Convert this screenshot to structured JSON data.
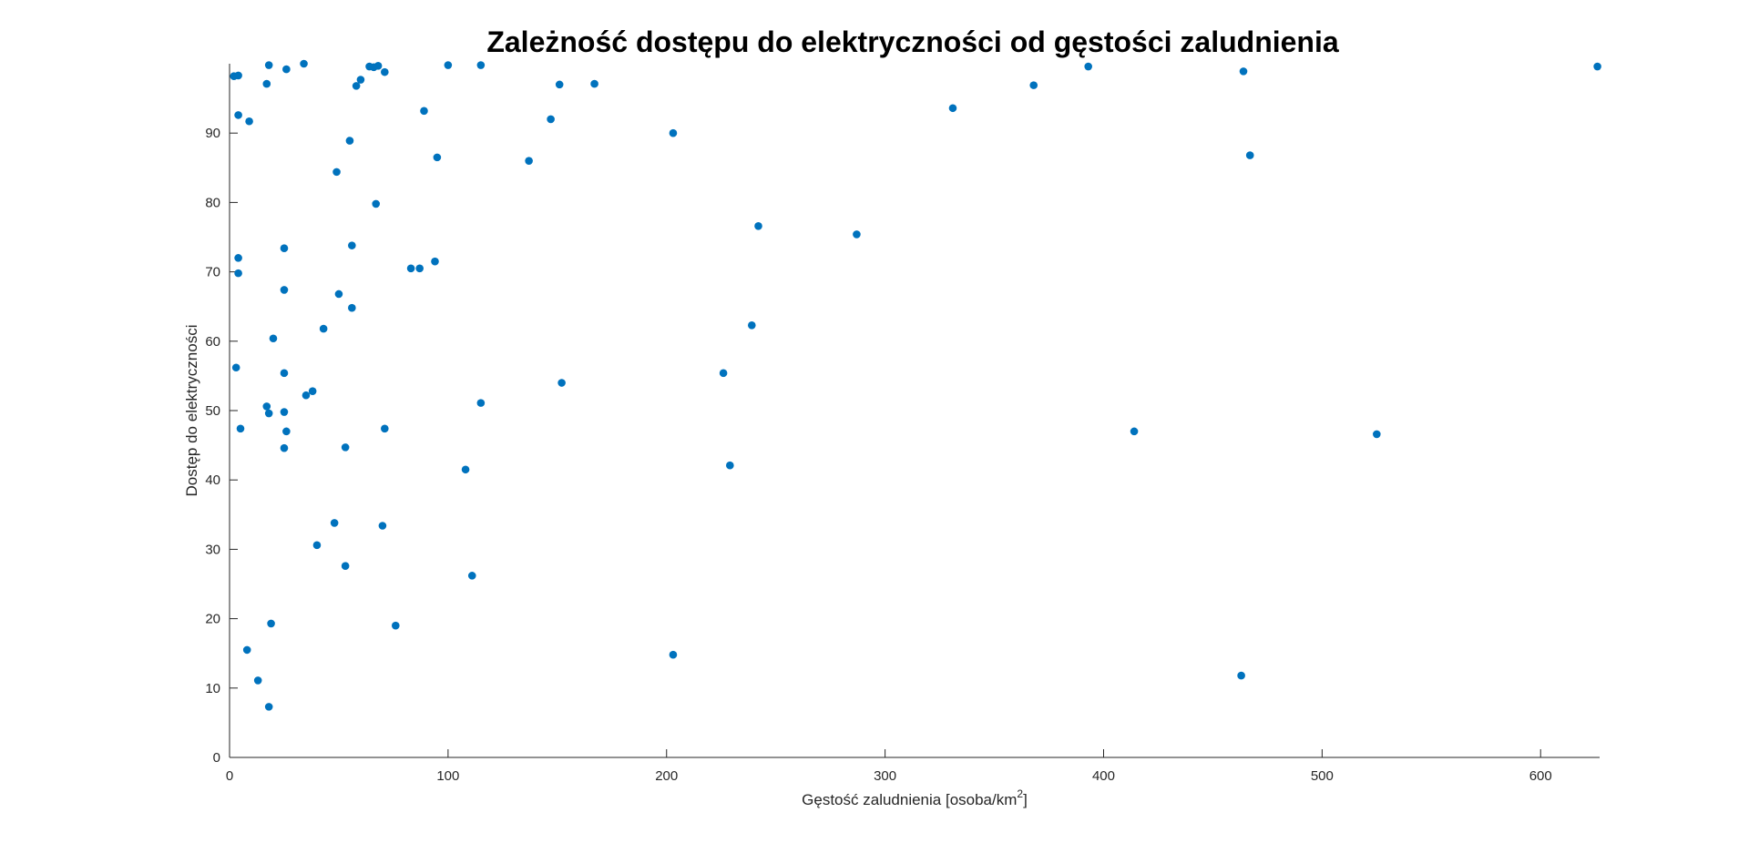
{
  "chart_data": {
    "type": "scatter",
    "title": "Zależność dostępu do elektryczności od gęstości zaludnienia",
    "xlabel": "Gęstość zaludnienia [osoba/km",
    "xlabel_superscript": "2",
    "xlabel_suffix": "]",
    "ylabel": "Dostęp do elektryczności",
    "xlim": [
      0,
      627
    ],
    "ylim": [
      0,
      100
    ],
    "xticks": [
      "0",
      "100",
      "200",
      "300",
      "400",
      "500",
      "600"
    ],
    "yticks": [
      "0",
      "10",
      "20",
      "30",
      "40",
      "50",
      "60",
      "70",
      "80",
      "90"
    ],
    "grid": false,
    "marker_color": "#0072BD",
    "series": [
      {
        "points": [
          [
            2,
            98.2
          ],
          [
            4,
            98.3
          ],
          [
            18,
            99.8
          ],
          [
            34,
            100
          ],
          [
            64,
            99.6
          ],
          [
            66,
            99.5
          ],
          [
            68,
            99.7
          ],
          [
            71,
            98.8
          ],
          [
            100,
            99.8
          ],
          [
            115,
            99.8
          ],
          [
            17,
            97.1
          ],
          [
            26,
            99.2
          ],
          [
            60,
            97.7
          ],
          [
            58,
            96.8
          ],
          [
            151,
            97
          ],
          [
            167,
            97.1
          ],
          [
            393,
            99.6
          ],
          [
            464,
            98.9
          ],
          [
            626,
            99.6
          ],
          [
            368,
            96.9
          ],
          [
            4,
            92.6
          ],
          [
            9,
            91.7
          ],
          [
            89,
            93.2
          ],
          [
            147,
            92
          ],
          [
            331,
            93.6
          ],
          [
            203,
            90
          ],
          [
            55,
            88.9
          ],
          [
            95,
            86.5
          ],
          [
            137,
            86
          ],
          [
            467,
            86.8
          ],
          [
            49,
            84.4
          ],
          [
            67,
            79.8
          ],
          [
            242,
            76.6
          ],
          [
            287,
            75.4
          ],
          [
            25,
            73.4
          ],
          [
            56,
            73.8
          ],
          [
            4,
            72
          ],
          [
            4,
            69.8
          ],
          [
            83,
            70.5
          ],
          [
            87,
            70.5
          ],
          [
            94,
            71.5
          ],
          [
            25,
            67.4
          ],
          [
            50,
            66.8
          ],
          [
            56,
            64.8
          ],
          [
            239,
            62.3
          ],
          [
            43,
            61.8
          ],
          [
            20,
            60.4
          ],
          [
            3,
            56.2
          ],
          [
            25,
            55.4
          ],
          [
            226,
            55.4
          ],
          [
            152,
            54
          ],
          [
            38,
            52.8
          ],
          [
            35,
            52.2
          ],
          [
            115,
            51.1
          ],
          [
            17,
            50.6
          ],
          [
            18,
            49.6
          ],
          [
            25,
            49.8
          ],
          [
            5,
            47.4
          ],
          [
            26,
            47
          ],
          [
            71,
            47.4
          ],
          [
            414,
            47
          ],
          [
            525,
            46.6
          ],
          [
            25,
            44.6
          ],
          [
            53,
            44.7
          ],
          [
            108,
            41.5
          ],
          [
            229,
            42.1
          ],
          [
            48,
            33.8
          ],
          [
            70,
            33.4
          ],
          [
            40,
            30.6
          ],
          [
            53,
            27.6
          ],
          [
            111,
            26.2
          ],
          [
            19,
            19.3
          ],
          [
            76,
            19
          ],
          [
            8,
            15.5
          ],
          [
            203,
            14.8
          ],
          [
            13,
            11.1
          ],
          [
            463,
            11.8
          ],
          [
            18,
            7.3
          ]
        ]
      }
    ]
  }
}
